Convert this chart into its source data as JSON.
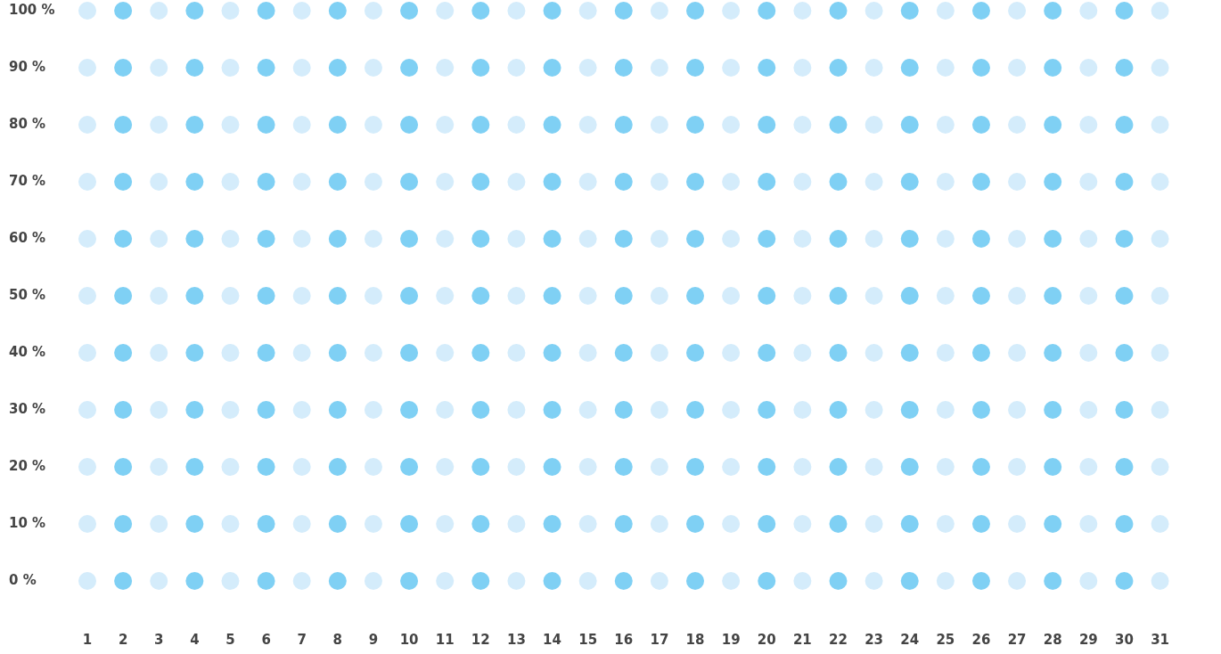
{
  "chart_data": {
    "type": "scatter",
    "marker": "circle",
    "legend": false,
    "grid": false,
    "xlim": [
      1,
      31
    ],
    "xticks": [
      1,
      2,
      3,
      4,
      5,
      6,
      7,
      8,
      9,
      10,
      11,
      12,
      13,
      14,
      15,
      16,
      17,
      18,
      19,
      20,
      21,
      22,
      23,
      24,
      25,
      26,
      27,
      28,
      29,
      30,
      31
    ],
    "ylim": [
      0,
      100
    ],
    "yticks": [
      {
        "value": 0,
        "label": "0 %"
      },
      {
        "value": 10,
        "label": "10 %"
      },
      {
        "value": 20,
        "label": "20 %"
      },
      {
        "value": 30,
        "label": "30 %"
      },
      {
        "value": 40,
        "label": "40 %"
      },
      {
        "value": 50,
        "label": "50 %"
      },
      {
        "value": 60,
        "label": "60 %"
      },
      {
        "value": 70,
        "label": "70 %"
      },
      {
        "value": 80,
        "label": "80 %"
      },
      {
        "value": 90,
        "label": "90 %"
      },
      {
        "value": 100,
        "label": "100 %"
      }
    ],
    "series": [
      {
        "color": "#d4ecfb",
        "x": [
          1,
          3,
          5,
          7,
          9,
          11,
          13,
          15,
          17,
          19,
          21,
          23,
          25,
          27,
          29,
          31,
          1,
          3,
          5,
          7,
          9,
          11,
          13,
          15,
          17,
          19,
          21,
          23,
          25,
          27,
          29,
          31,
          1,
          3,
          5,
          7,
          9,
          11,
          13,
          15,
          17,
          19,
          21,
          23,
          25,
          27,
          29,
          31,
          1,
          3,
          5,
          7,
          9,
          11,
          13,
          15,
          17,
          19,
          21,
          23,
          25,
          27,
          29,
          31,
          1,
          3,
          5,
          7,
          9,
          11,
          13,
          15,
          17,
          19,
          21,
          23,
          25,
          27,
          29,
          31,
          1,
          3,
          5,
          7,
          9,
          11,
          13,
          15,
          17,
          19,
          21,
          23,
          25,
          27,
          29,
          31,
          1,
          3,
          5,
          7,
          9,
          11,
          13,
          15,
          17,
          19,
          21,
          23,
          25,
          27,
          29,
          31,
          1,
          3,
          5,
          7,
          9,
          11,
          13,
          15,
          17,
          19,
          21,
          23,
          25,
          27,
          29,
          31,
          1,
          3,
          5,
          7,
          9,
          11,
          13,
          15,
          17,
          19,
          21,
          23,
          25,
          27,
          29,
          31,
          1,
          3,
          5,
          7,
          9,
          11,
          13,
          15,
          17,
          19,
          21,
          23,
          25,
          27,
          29,
          31,
          1,
          3,
          5,
          7,
          9,
          11,
          13,
          15,
          17,
          19,
          21,
          23,
          25,
          27,
          29,
          31
        ],
        "values": [
          0,
          0,
          0,
          0,
          0,
          0,
          0,
          0,
          0,
          0,
          0,
          0,
          0,
          0,
          0,
          0,
          10,
          10,
          10,
          10,
          10,
          10,
          10,
          10,
          10,
          10,
          10,
          10,
          10,
          10,
          10,
          10,
          20,
          20,
          20,
          20,
          20,
          20,
          20,
          20,
          20,
          20,
          20,
          20,
          20,
          20,
          20,
          20,
          30,
          30,
          30,
          30,
          30,
          30,
          30,
          30,
          30,
          30,
          30,
          30,
          30,
          30,
          30,
          30,
          40,
          40,
          40,
          40,
          40,
          40,
          40,
          40,
          40,
          40,
          40,
          40,
          40,
          40,
          40,
          40,
          50,
          50,
          50,
          50,
          50,
          50,
          50,
          50,
          50,
          50,
          50,
          50,
          50,
          50,
          50,
          50,
          60,
          60,
          60,
          60,
          60,
          60,
          60,
          60,
          60,
          60,
          60,
          60,
          60,
          60,
          60,
          60,
          70,
          70,
          70,
          70,
          70,
          70,
          70,
          70,
          70,
          70,
          70,
          70,
          70,
          70,
          70,
          70,
          80,
          80,
          80,
          80,
          80,
          80,
          80,
          80,
          80,
          80,
          80,
          80,
          80,
          80,
          80,
          80,
          90,
          90,
          90,
          90,
          90,
          90,
          90,
          90,
          90,
          90,
          90,
          90,
          90,
          90,
          90,
          90,
          100,
          100,
          100,
          100,
          100,
          100,
          100,
          100,
          100,
          100,
          100,
          100,
          100,
          100,
          100,
          100
        ]
      },
      {
        "color": "#7fd0f4",
        "x": [
          2,
          4,
          6,
          8,
          10,
          12,
          14,
          16,
          18,
          20,
          22,
          24,
          26,
          28,
          30,
          2,
          4,
          6,
          8,
          10,
          12,
          14,
          16,
          18,
          20,
          22,
          24,
          26,
          28,
          30,
          2,
          4,
          6,
          8,
          10,
          12,
          14,
          16,
          18,
          20,
          22,
          24,
          26,
          28,
          30,
          2,
          4,
          6,
          8,
          10,
          12,
          14,
          16,
          18,
          20,
          22,
          24,
          26,
          28,
          30,
          2,
          4,
          6,
          8,
          10,
          12,
          14,
          16,
          18,
          20,
          22,
          24,
          26,
          28,
          30,
          2,
          4,
          6,
          8,
          10,
          12,
          14,
          16,
          18,
          20,
          22,
          24,
          26,
          28,
          30,
          2,
          4,
          6,
          8,
          10,
          12,
          14,
          16,
          18,
          20,
          22,
          24,
          26,
          28,
          30,
          2,
          4,
          6,
          8,
          10,
          12,
          14,
          16,
          18,
          20,
          22,
          24,
          26,
          28,
          30,
          2,
          4,
          6,
          8,
          10,
          12,
          14,
          16,
          18,
          20,
          22,
          24,
          26,
          28,
          30,
          2,
          4,
          6,
          8,
          10,
          12,
          14,
          16,
          18,
          20,
          22,
          24,
          26,
          28,
          30,
          2,
          4,
          6,
          8,
          10,
          12,
          14,
          16,
          18,
          20,
          22,
          24,
          26,
          28,
          30
        ],
        "values": [
          0,
          0,
          0,
          0,
          0,
          0,
          0,
          0,
          0,
          0,
          0,
          0,
          0,
          0,
          0,
          10,
          10,
          10,
          10,
          10,
          10,
          10,
          10,
          10,
          10,
          10,
          10,
          10,
          10,
          10,
          20,
          20,
          20,
          20,
          20,
          20,
          20,
          20,
          20,
          20,
          20,
          20,
          20,
          20,
          20,
          30,
          30,
          30,
          30,
          30,
          30,
          30,
          30,
          30,
          30,
          30,
          30,
          30,
          30,
          30,
          40,
          40,
          40,
          40,
          40,
          40,
          40,
          40,
          40,
          40,
          40,
          40,
          40,
          40,
          40,
          50,
          50,
          50,
          50,
          50,
          50,
          50,
          50,
          50,
          50,
          50,
          50,
          50,
          50,
          50,
          60,
          60,
          60,
          60,
          60,
          60,
          60,
          60,
          60,
          60,
          60,
          60,
          60,
          60,
          60,
          70,
          70,
          70,
          70,
          70,
          70,
          70,
          70,
          70,
          70,
          70,
          70,
          70,
          70,
          70,
          80,
          80,
          80,
          80,
          80,
          80,
          80,
          80,
          80,
          80,
          80,
          80,
          80,
          80,
          80,
          90,
          90,
          90,
          90,
          90,
          90,
          90,
          90,
          90,
          90,
          90,
          90,
          90,
          90,
          90,
          100,
          100,
          100,
          100,
          100,
          100,
          100,
          100,
          100,
          100,
          100,
          100,
          100,
          100,
          100
        ]
      }
    ]
  }
}
